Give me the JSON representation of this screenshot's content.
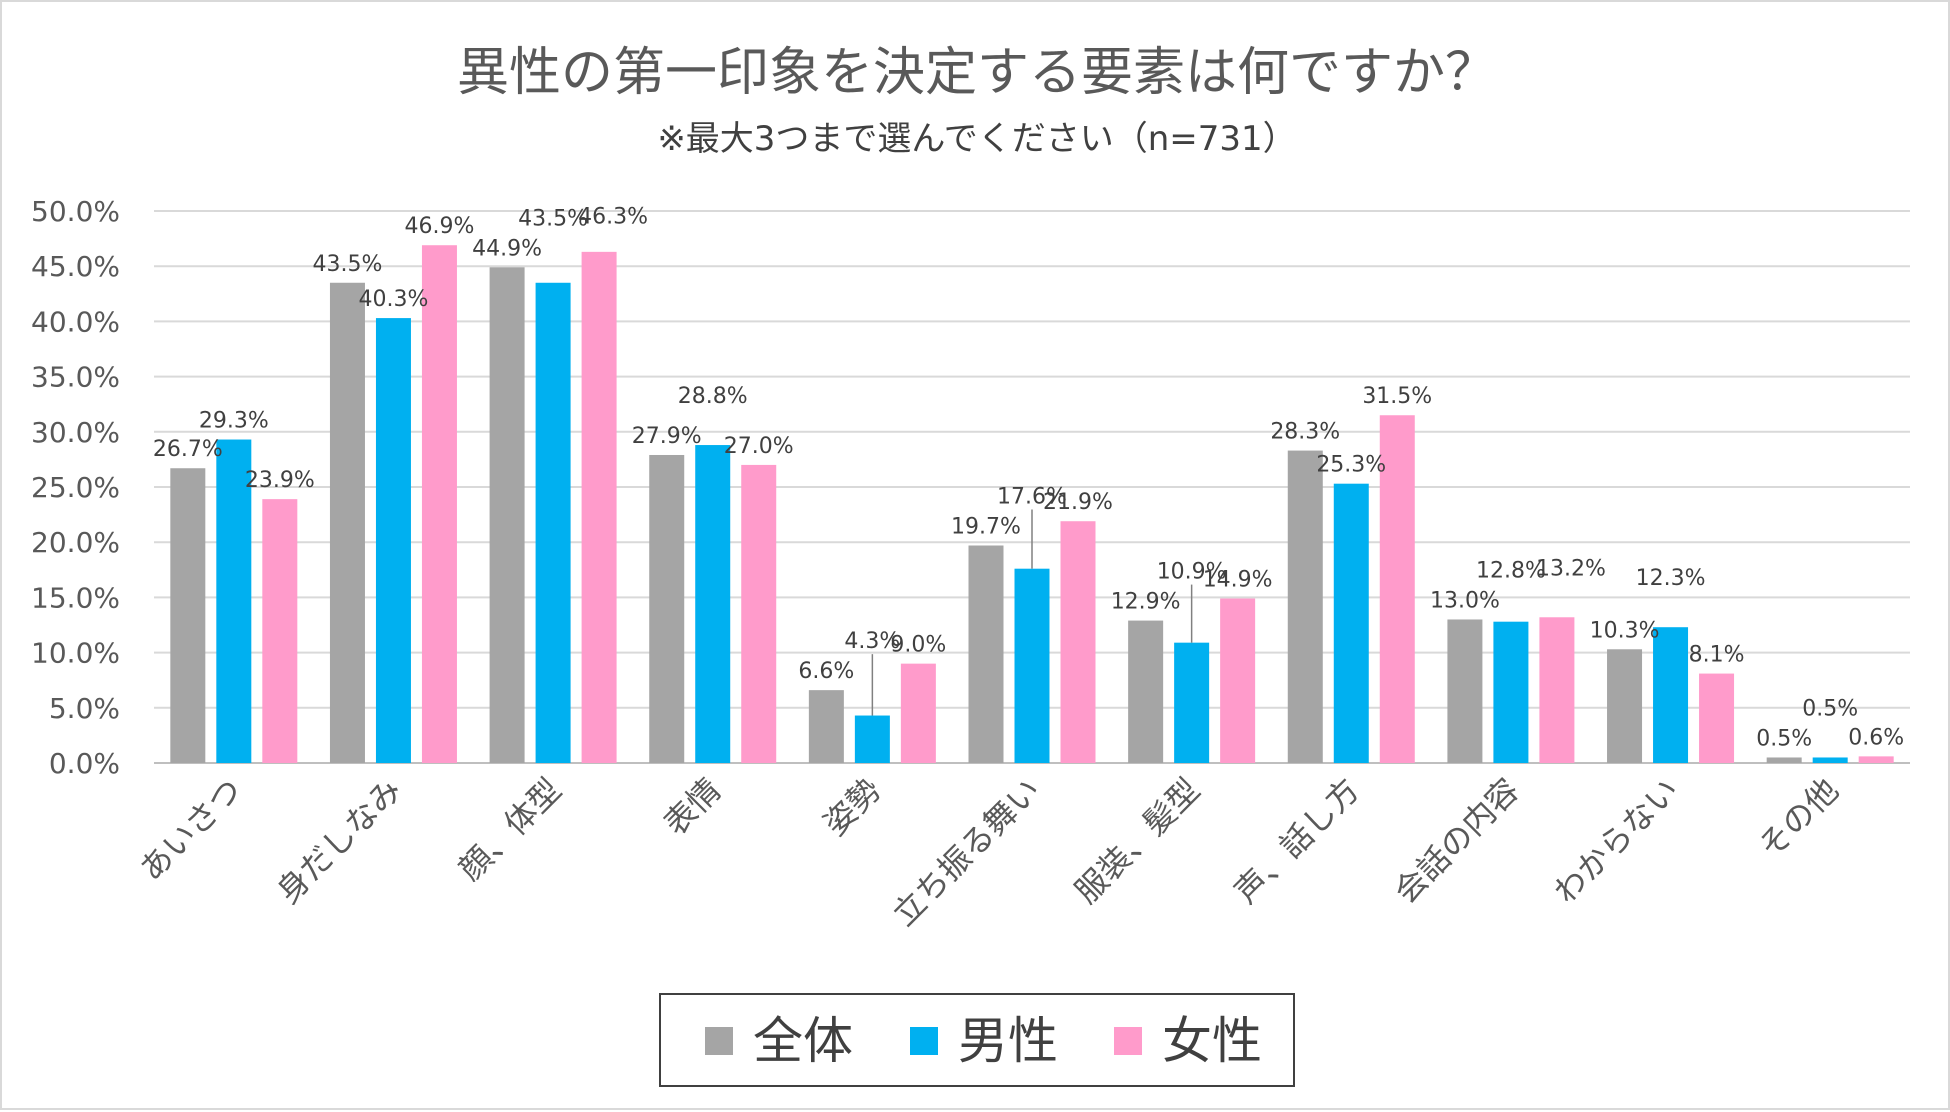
{
  "chart_data": {
    "type": "bar",
    "title": "異性の第一印象を決定する要素は何ですか？",
    "subtitle": "※最大3つまで選んでください（n=731）",
    "categories": [
      "あいさつ",
      "身だしなみ",
      "顔、体型",
      "表情",
      "姿勢",
      "立ち振る舞い",
      "服装、髪型",
      "声、話し方",
      "会話の内容",
      "わからない",
      "その他"
    ],
    "series": [
      {
        "name": "全体",
        "color": "#a5a5a5",
        "values": [
          26.7,
          43.5,
          44.9,
          27.9,
          6.6,
          19.7,
          12.9,
          28.3,
          13.0,
          10.3,
          0.5
        ]
      },
      {
        "name": "男性",
        "color": "#00b0f0",
        "values": [
          29.3,
          40.3,
          43.5,
          28.8,
          4.3,
          17.6,
          10.9,
          25.3,
          12.8,
          12.3,
          0.5
        ]
      },
      {
        "name": "女性",
        "color": "#ff9bcb",
        "values": [
          23.9,
          46.9,
          46.3,
          27.0,
          9.0,
          21.9,
          14.9,
          31.5,
          13.2,
          8.1,
          0.6
        ]
      }
    ],
    "ylim": [
      0,
      50
    ],
    "yticks": [
      "0.0%",
      "5.0%",
      "10.0%",
      "15.0%",
      "20.0%",
      "25.0%",
      "30.0%",
      "35.0%",
      "40.0%",
      "45.0%",
      "50.0%"
    ],
    "data_labels": [
      [
        "26.7%",
        "43.5%",
        "44.9%",
        "27.9%",
        "6.6%",
        "19.7%",
        "12.9%",
        "28.3%",
        "13.0%",
        "10.3%",
        "0.5%"
      ],
      [
        "29.3%",
        "40.3%",
        "43.5%",
        "28.8%",
        "4.3%",
        "17.6%",
        "10.9%",
        "25.3%",
        "12.8%",
        "12.3%",
        "0.5%"
      ],
      [
        "23.9%",
        "46.9%",
        "46.3%",
        "27.0%",
        "9.0%",
        "21.9%",
        "14.9%",
        "31.5%",
        "13.2%",
        "8.1%",
        "0.6%"
      ]
    ],
    "grid": true,
    "legend": "bottom"
  }
}
